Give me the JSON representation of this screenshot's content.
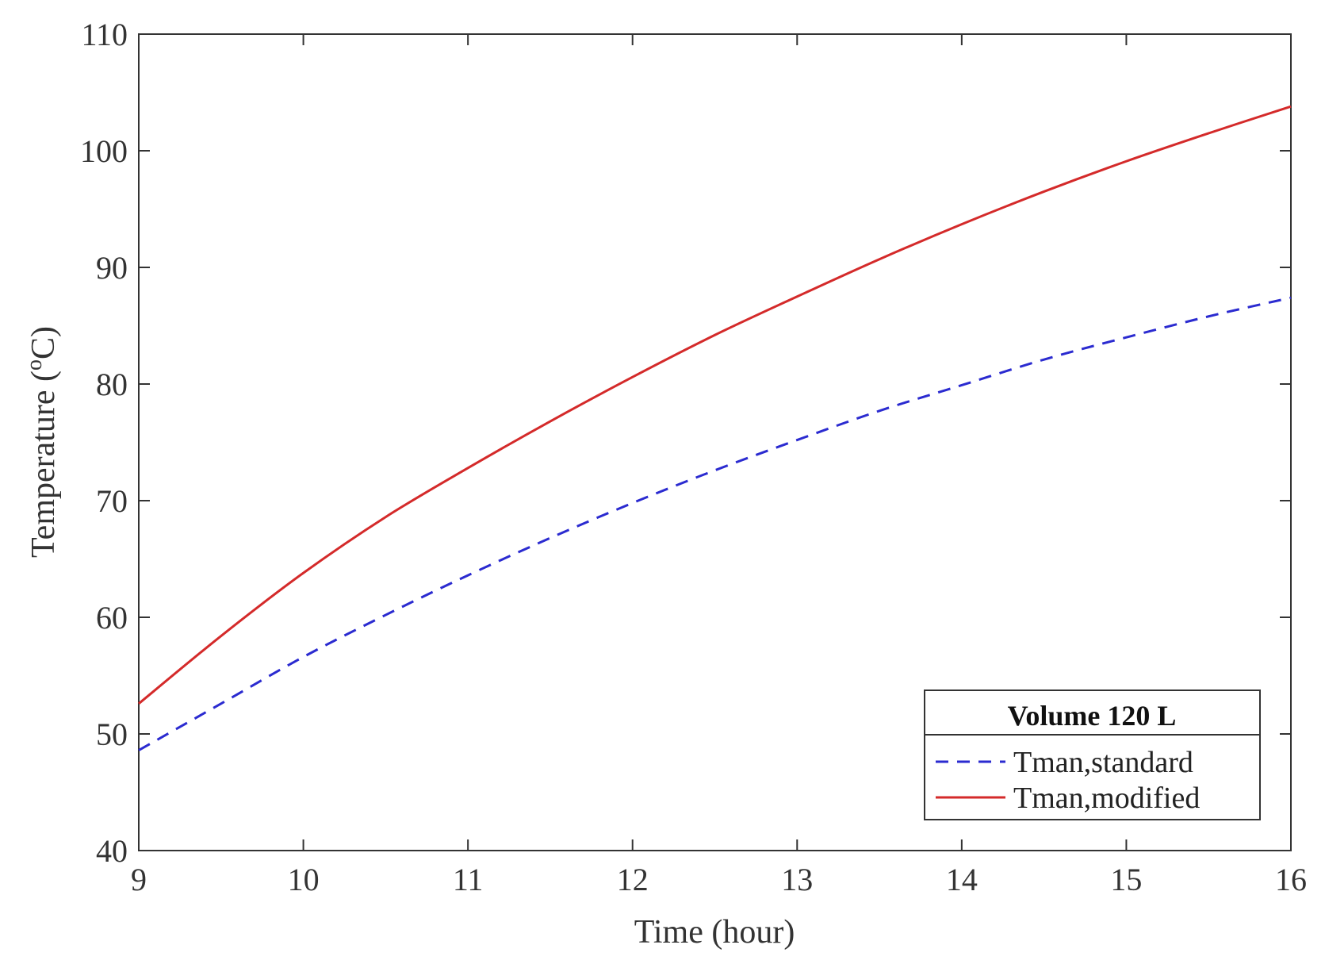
{
  "chart_data": {
    "type": "line",
    "xlabel": "Time (hour)",
    "ylabel_main": "Temperature (",
    "ylabel_sup": "o",
    "ylabel_unit": "C)",
    "xlim": [
      9,
      16
    ],
    "ylim": [
      40,
      110
    ],
    "xticks": [
      9,
      10,
      11,
      12,
      13,
      14,
      15,
      16
    ],
    "yticks": [
      40,
      50,
      60,
      70,
      80,
      90,
      100,
      110
    ],
    "grid": false,
    "legend": {
      "title": "Volume 120 L",
      "placement": "bottom-right"
    },
    "series": [
      {
        "name": "Tman,standard",
        "color": "#2b2bd0",
        "style": "dashed",
        "x": [
          9,
          9.5,
          10,
          10.5,
          11,
          11.5,
          12,
          12.5,
          13,
          13.5,
          14,
          14.5,
          15,
          15.5,
          16
        ],
        "y": [
          48.6,
          52.6,
          56.6,
          60.2,
          63.6,
          66.8,
          69.8,
          72.6,
          75.2,
          77.7,
          79.9,
          82.1,
          84.0,
          85.8,
          87.4
        ]
      },
      {
        "name": "Tman,modified",
        "color": "#d42a2a",
        "style": "solid",
        "x": [
          9,
          9.5,
          10,
          10.5,
          11,
          11.5,
          12,
          12.5,
          13,
          13.5,
          14,
          14.5,
          15,
          15.5,
          16
        ],
        "y": [
          52.6,
          58.4,
          63.8,
          68.6,
          72.8,
          76.8,
          80.6,
          84.2,
          87.5,
          90.7,
          93.7,
          96.5,
          99.1,
          101.5,
          103.8
        ]
      }
    ]
  }
}
